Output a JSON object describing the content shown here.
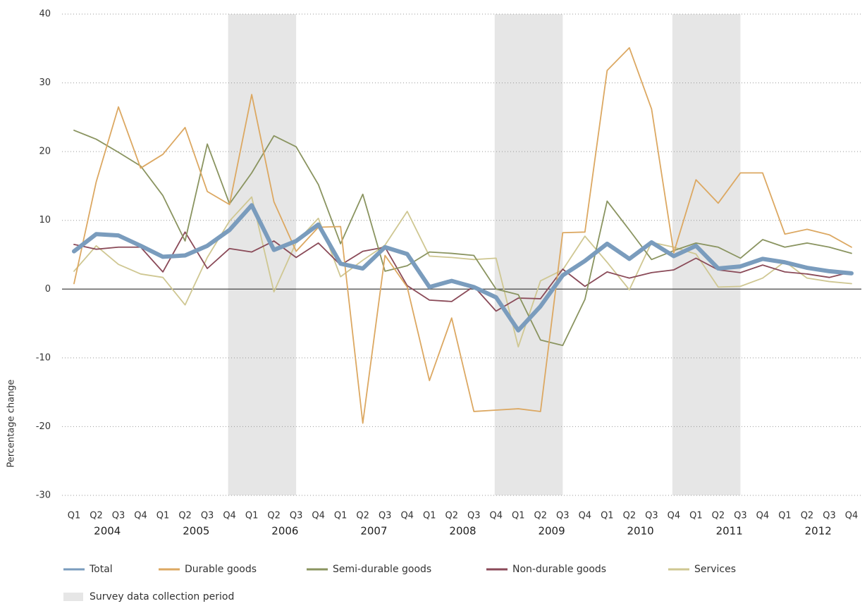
{
  "chart_data": {
    "type": "line",
    "y_axis_label": "Percentage change",
    "categories": [
      "Q1",
      "Q2",
      "Q3",
      "Q4",
      "Q1",
      "Q2",
      "Q3",
      "Q4",
      "Q1",
      "Q2",
      "Q3",
      "Q4",
      "Q1",
      "Q2",
      "Q3",
      "Q4",
      "Q1",
      "Q2",
      "Q3",
      "Q4",
      "Q1",
      "Q2",
      "Q3",
      "Q4",
      "Q1",
      "Q2",
      "Q3",
      "Q4",
      "Q1",
      "Q2",
      "Q3",
      "Q4",
      "Q1",
      "Q2",
      "Q3",
      "Q4"
    ],
    "years": [
      "2004",
      "2005",
      "2006",
      "2007",
      "2008",
      "2009",
      "2010",
      "2011",
      "2012"
    ],
    "ylim": [
      -30,
      40
    ],
    "yticks": [
      -30,
      -20,
      -10,
      0,
      10,
      20,
      30,
      40
    ],
    "grid": true,
    "survey_periods": {
      "name": "Survey data collection period",
      "color": "#e6e6e6",
      "ranges": [
        [
          7,
          10
        ],
        [
          19,
          22
        ],
        [
          27,
          30
        ]
      ]
    },
    "series": [
      {
        "name": "Total",
        "color": "#7a9cbd",
        "values": [
          5.5,
          8.0,
          7.8,
          6.3,
          4.7,
          4.9,
          6.3,
          8.6,
          12.2,
          5.7,
          7.0,
          9.4,
          3.7,
          3.0,
          6.1,
          5.1,
          0.3,
          1.2,
          0.3,
          -1.2,
          -6.0,
          -2.5,
          2.0,
          4.1,
          6.6,
          4.4,
          6.8,
          4.8,
          6.3,
          3.0,
          3.3,
          4.4,
          3.9,
          3.1,
          2.6,
          2.3
        ]
      },
      {
        "name": "Durable goods",
        "color": "#dca862",
        "values": [
          0.8,
          15.6,
          26.5,
          17.6,
          19.6,
          23.5,
          14.2,
          12.3,
          28.3,
          12.7,
          5.5,
          9.0,
          9.1,
          -19.5,
          4.9,
          0.3,
          -13.3,
          -4.2,
          -17.8,
          -17.6,
          -17.4,
          -17.8,
          8.2,
          8.3,
          31.8,
          35.1,
          26.2,
          5.3,
          15.9,
          12.5,
          16.9,
          16.9,
          8.0,
          8.7,
          7.9,
          6.1
        ]
      },
      {
        "name": "Semi-durable goods",
        "color": "#8a9460",
        "values": [
          23.1,
          21.8,
          19.9,
          17.9,
          13.6,
          7.0,
          21.1,
          12.4,
          16.9,
          22.3,
          20.7,
          15.2,
          6.6,
          13.8,
          2.6,
          3.4,
          5.4,
          5.2,
          4.9,
          0.0,
          -0.8,
          -7.4,
          -8.2,
          -1.5,
          12.8,
          8.6,
          4.3,
          5.6,
          6.7,
          6.1,
          4.5,
          7.2,
          6.1,
          6.7,
          6.1,
          5.2
        ]
      },
      {
        "name": "Non-durable goods",
        "color": "#8a4a58",
        "values": [
          6.5,
          5.8,
          6.1,
          6.1,
          2.5,
          8.3,
          3.0,
          5.9,
          5.4,
          7.0,
          4.6,
          6.7,
          3.5,
          5.5,
          6.1,
          0.5,
          -1.6,
          -1.8,
          0.4,
          -3.2,
          -1.3,
          -1.4,
          2.9,
          0.4,
          2.5,
          1.6,
          2.4,
          2.8,
          4.5,
          2.8,
          2.4,
          3.5,
          2.5,
          2.2,
          1.7,
          2.5
        ]
      },
      {
        "name": "Services",
        "color": "#cfc792",
        "values": [
          2.6,
          6.3,
          3.6,
          2.2,
          1.7,
          -2.3,
          4.6,
          9.9,
          13.4,
          -0.4,
          6.8,
          10.3,
          1.8,
          4.2,
          6.4,
          11.3,
          4.8,
          4.6,
          4.3,
          4.5,
          -8.4,
          1.2,
          2.8,
          7.7,
          3.9,
          -0.1,
          6.8,
          6.1,
          5.1,
          0.3,
          0.4,
          1.6,
          4.0,
          1.6,
          1.1,
          0.8
        ]
      }
    ]
  }
}
